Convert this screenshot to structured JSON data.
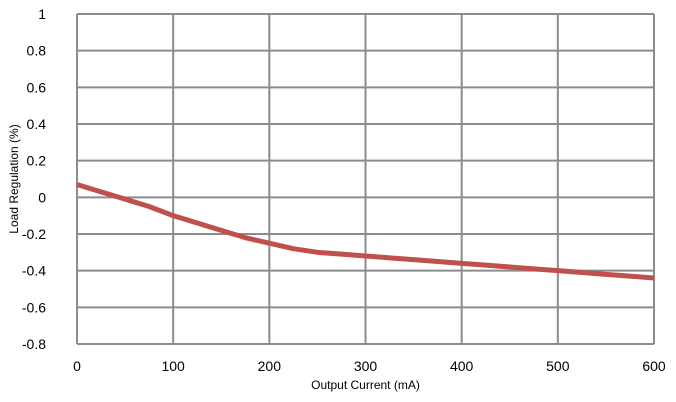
{
  "chart_data": {
    "type": "line",
    "title": "",
    "xlabel": "Output Current (mA)",
    "ylabel": "Load Regulation (%)",
    "xlim": [
      0,
      600
    ],
    "ylim": [
      -0.8,
      1
    ],
    "x_ticks": [
      0,
      100,
      200,
      300,
      400,
      500,
      600
    ],
    "y_ticks": [
      1,
      0.8,
      0.6,
      0.4,
      0.2,
      0,
      -0.2,
      -0.4,
      -0.6,
      -0.8
    ],
    "x_tick_labels": [
      "0",
      "100",
      "200",
      "300",
      "400",
      "500",
      "600"
    ],
    "y_tick_labels": [
      "1",
      "0.8",
      "0.6",
      "0.4",
      "0.2",
      "0",
      "-0.2",
      "-0.4",
      "-0.6",
      "-0.8"
    ],
    "grid": true,
    "legend": "none",
    "series": [
      {
        "color": "#c0504d",
        "x": [
          0,
          25,
          50,
          75,
          100,
          125,
          150,
          175,
          200,
          225,
          250,
          275,
          300,
          325,
          350,
          375,
          400,
          425,
          450,
          475,
          500,
          525,
          550,
          575,
          600
        ],
        "values": [
          0.07,
          0.03,
          -0.01,
          -0.05,
          -0.1,
          -0.14,
          -0.18,
          -0.22,
          -0.25,
          -0.28,
          -0.3,
          -0.31,
          -0.32,
          -0.33,
          -0.34,
          -0.35,
          -0.36,
          -0.37,
          -0.38,
          -0.39,
          -0.4,
          -0.41,
          -0.42,
          -0.43,
          -0.44
        ]
      }
    ],
    "gridline_color": "#8c8c8c",
    "axis_color": "#8c8c8c"
  }
}
